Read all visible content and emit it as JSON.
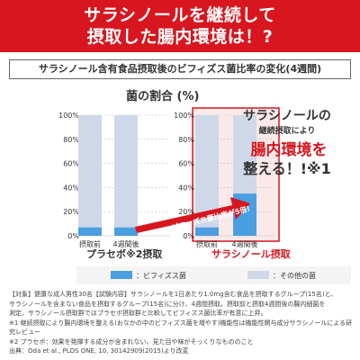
{
  "banner": {
    "line1": "サラシノールを継続して",
    "line2": "摂取した腸内環境は！?"
  },
  "subtitle": "サラシノール含有食品摂取後のビフィズス菌比率の変化(4週間)",
  "chart_label": "菌の割合 (%)",
  "callout": {
    "line1": "サラシノールの",
    "line2": "継続摂取により",
    "line3": "腸内環境を",
    "line4": "整える！!※1"
  },
  "ratio_arrow_text": "ビフィズス菌比率が5倍!",
  "captions": {
    "left": "プラセボ※2摂取",
    "right": "サラシノール摂取"
  },
  "legend": {
    "bifido": "：ビフィズス菌",
    "other": "：その他の菌"
  },
  "notes": [
    "【対象】健康な成人男性30名【試験内容】サラシノールを1日あたり1.0mg含む食品を摂取するグループ(15名)と、",
    "サラシノールを含まない食品を摂取するグループ(15名)に分け、4週間摂取。摂取前と摂取4週間後の腸内細菌を",
    "測定。サラシノール摂取群ではプラセボ摂取群と比較してビフィズス菌比率が有意に上昇。",
    "※1 継続摂取により腸内環境を整える(おなかの中のビフィズス菌を増やす)機能性は機能性関与成分サラシノールによる研究レビュー",
    "※2 プラセボ：効果を発揮する成分が含まれない、見た目や味がそっくりなもののこと",
    "出典：Oda et al., PLOS ONE, 10, 30142909(2015)より改変"
  ],
  "colors": {
    "brand_red": "#d7161f",
    "bifido": "#4a9fe0",
    "other": "#cfd8e8",
    "highlight_bg": "#fbe9ea"
  },
  "chart_data": [
    {
      "type": "bar",
      "title": "プラセボ※2摂取",
      "ylabel": "菌の割合 (%)",
      "categories": [
        "摂取前",
        "4週間後"
      ],
      "series": [
        {
          "name": "ビフィズス菌",
          "values": [
            7,
            7
          ]
        },
        {
          "name": "その他の菌",
          "values": [
            93,
            93
          ]
        }
      ],
      "ylim": [
        0,
        100
      ],
      "yticks": [
        "0%",
        "20%",
        "40%",
        "60%",
        "80%",
        "100%"
      ]
    },
    {
      "type": "bar",
      "title": "サラシノール摂取",
      "categories": [
        "摂取前",
        "4週間後"
      ],
      "series": [
        {
          "name": "ビフィズス菌",
          "values": [
            7,
            35
          ]
        },
        {
          "name": "その他の菌",
          "values": [
            93,
            65
          ]
        }
      ],
      "ylim": [
        0,
        100
      ],
      "yticks": [
        "0%",
        "20%",
        "40%",
        "60%",
        "80%",
        "100%"
      ]
    }
  ]
}
